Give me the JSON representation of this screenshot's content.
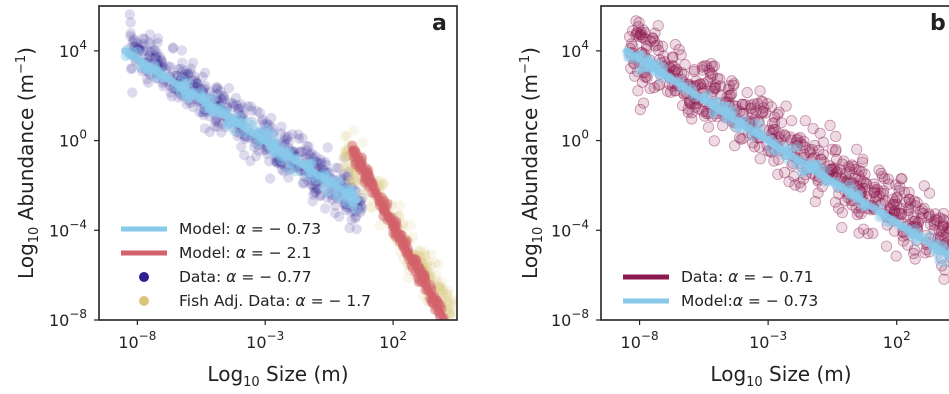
{
  "colors": {
    "model_shallow": "#87c9ea",
    "model_steep": "#d2616b",
    "data_indigo": "#2c1f8e",
    "fish_adj_gold": "#dcc57a",
    "data_maroon": "#8c1a4f"
  },
  "chart_data": [
    {
      "type": "scatter",
      "panel_label": "a",
      "xlabel": "Log$_{10}$ Size (m)",
      "xlabel_parts": {
        "pre": "Log",
        "sub": "10",
        "post": " Size (m)"
      },
      "ylabel_parts": {
        "pre": "Log",
        "sub": "10",
        "post": " Abundance (m",
        "sup": "−1",
        "end": ")"
      },
      "x_log10_range": [
        -9.5,
        4.5
      ],
      "y_log10_range": [
        -8,
        6
      ],
      "x_ticks": [
        {
          "exp": -8,
          "base": "10",
          "sup": "−8"
        },
        {
          "exp": -3,
          "base": "10",
          "sup": "−3"
        },
        {
          "exp": 2,
          "base": "10",
          "sup": "2"
        }
      ],
      "y_ticks": [
        {
          "exp": -8,
          "base": "10",
          "sup": "−8"
        },
        {
          "exp": -4,
          "base": "10",
          "sup": "−4"
        },
        {
          "exp": 0,
          "base": "10",
          "sup": "0"
        },
        {
          "exp": 4,
          "base": "10",
          "sup": "4"
        }
      ],
      "grid": false,
      "legend_position": "lower-left",
      "series": [
        {
          "name": "Data: α = − 0.77",
          "kind": "points",
          "color_key": "data_indigo",
          "slope": -0.77,
          "x_log10_range": [
            -8.3,
            0.8
          ],
          "anchor": [
            -8,
            3.9
          ]
        },
        {
          "name": "Fish Adj. Data: α = − 1.7",
          "kind": "points",
          "color_key": "fish_adj_gold",
          "slope": -1.7,
          "x_log10_range": [
            0.0,
            4.4
          ],
          "anchor": [
            0.0,
            -0.3
          ]
        },
        {
          "name": "Model: α = − 0.73",
          "kind": "line",
          "color_key": "model_shallow",
          "slope": -0.73,
          "x_log10_range": [
            -8.5,
            0.6
          ],
          "anchor": [
            -8.5,
            4.0
          ]
        },
        {
          "name": "Model: α = − 2.1",
          "kind": "line",
          "color_key": "model_steep",
          "slope": -2.1,
          "x_log10_range": [
            0.4,
            4.0
          ],
          "anchor": [
            0.4,
            -0.4
          ]
        }
      ],
      "legend_order": [
        {
          "label_pre": "Model: ",
          "alpha": "− 0.73",
          "kind": "line",
          "color_key": "model_shallow"
        },
        {
          "label_pre": "Model: ",
          "alpha": "− 2.1",
          "kind": "line",
          "color_key": "model_steep"
        },
        {
          "label_pre": "Data: ",
          "alpha": "− 0.77",
          "kind": "dot",
          "color_key": "data_indigo"
        },
        {
          "label_pre": "Fish Adj. Data: ",
          "alpha": "− 1.7",
          "kind": "dot",
          "color_key": "fish_adj_gold"
        }
      ]
    },
    {
      "type": "scatter",
      "panel_label": "b",
      "xlabel_parts": {
        "pre": "Log",
        "sub": "10",
        "post": " Size (m)"
      },
      "ylabel_parts": {
        "pre": "Log",
        "sub": "10",
        "post": " Abundance (m",
        "sup": "−1",
        "end": ")"
      },
      "x_log10_range": [
        -9.5,
        4.5
      ],
      "y_log10_range": [
        -8,
        6
      ],
      "x_ticks": [
        {
          "exp": -8,
          "base": "10",
          "sup": "−8"
        },
        {
          "exp": -3,
          "base": "10",
          "sup": "−3"
        },
        {
          "exp": 2,
          "base": "10",
          "sup": "2"
        }
      ],
      "y_ticks": [
        {
          "exp": -8,
          "base": "10",
          "sup": "−8"
        },
        {
          "exp": -4,
          "base": "10",
          "sup": "−4"
        },
        {
          "exp": 0,
          "base": "10",
          "sup": "0"
        },
        {
          "exp": 4,
          "base": "10",
          "sup": "4"
        }
      ],
      "grid": false,
      "legend_position": "lower-left",
      "series": [
        {
          "name": "Data: α = − 0.71",
          "kind": "points",
          "color_key": "data_maroon",
          "slope": -0.71,
          "x_log10_range": [
            -8.4,
            4.5
          ],
          "anchor": [
            -8,
            3.9
          ]
        },
        {
          "name": "Model: α = − 0.73",
          "kind": "line",
          "color_key": "model_shallow",
          "slope": -0.73,
          "x_log10_range": [
            -8.5,
            4.5
          ],
          "anchor": [
            -8.5,
            4.0
          ]
        }
      ],
      "legend_order": [
        {
          "label_pre": "Data:  ",
          "alpha": "− 0.71",
          "kind": "line",
          "color_key": "data_maroon"
        },
        {
          "label_pre": "Model:",
          "alpha": "− 0.73",
          "kind": "line",
          "color_key": "model_shallow"
        }
      ]
    }
  ]
}
